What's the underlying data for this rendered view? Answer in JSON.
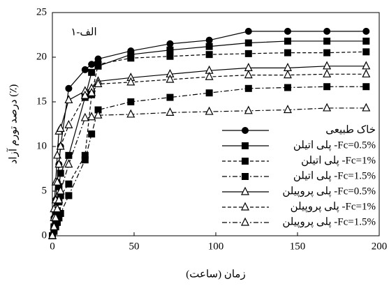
{
  "chart_data": {
    "type": "line",
    "annotation": "۱-الف",
    "x_label": "زمان (ساعت)",
    "y_label": "درصد تورم آزاد (٪)",
    "x": [
      0,
      1,
      2,
      3,
      4,
      5,
      10,
      20,
      24,
      28,
      48,
      72,
      96,
      120,
      144,
      168,
      192
    ],
    "xlim": [
      0,
      200
    ],
    "xticks": [
      0,
      50,
      100,
      150,
      200
    ],
    "ylim": [
      0,
      25
    ],
    "yticks": [
      0,
      5,
      10,
      15,
      20,
      25
    ],
    "grid": false,
    "legend_position": "lower-right",
    "series": [
      {
        "name": "خاک طبیعی",
        "color": "#000000",
        "marker": "circle",
        "dash": "solid",
        "values": [
          0,
          2,
          4,
          6,
          8,
          10,
          16.5,
          18.6,
          19.2,
          19.8,
          20.7,
          21.5,
          21.9,
          22.9,
          22.9,
          22.9,
          22.9
        ]
      },
      {
        "name": "پلی اتیلن -Fc=0.5%",
        "color": "#000000",
        "marker": "square",
        "dash": "solid",
        "values": [
          0,
          1,
          2.5,
          4,
          5.5,
          7,
          9.0,
          15.5,
          18.3,
          19.0,
          20.3,
          20.8,
          21.2,
          21.6,
          21.8,
          21.8,
          21.8
        ]
      },
      {
        "name": "پلی اتیلن -Fc=1%",
        "color": "#000000",
        "marker": "square",
        "dash": "dashed",
        "values": [
          0,
          0.8,
          1.8,
          2.8,
          3.8,
          4.5,
          5.8,
          9.0,
          15.8,
          19.2,
          19.9,
          20.1,
          20.3,
          20.4,
          20.5,
          20.5,
          20.6
        ]
      },
      {
        "name": "پلی اتیلن -Fc=1.5%",
        "color": "#000000",
        "marker": "square",
        "dash": "dashdot",
        "values": [
          0,
          0.5,
          1,
          1.5,
          2,
          2.5,
          4.5,
          8.5,
          11.4,
          14.1,
          15.0,
          15.5,
          16.0,
          16.5,
          16.6,
          16.7,
          16.7
        ]
      },
      {
        "name": "پلی پروپیلن -Fc=0.5%",
        "color": "#000000",
        "marker": "triangle",
        "dash": "solid",
        "values": [
          0,
          3,
          6,
          9,
          11.7,
          12,
          15.2,
          16.2,
          16.5,
          17.3,
          17.7,
          18.1,
          18.5,
          18.8,
          18.8,
          19.0,
          19.0
        ]
      },
      {
        "name": "پلی پروپیلن -Fc=1%",
        "color": "#000000",
        "marker": "triangle",
        "dash": "dashed",
        "values": [
          0,
          2,
          4,
          6,
          8,
          10,
          12.4,
          15.7,
          16.0,
          17.0,
          17.2,
          17.5,
          17.8,
          18.0,
          18.0,
          18.1,
          18.1
        ]
      },
      {
        "name": "پلی پروپیلن -Fc=1.5%",
        "color": "#000000",
        "marker": "triangle",
        "dash": "dashdot",
        "values": [
          0,
          1,
          2,
          3,
          4,
          5,
          8,
          13.2,
          13.3,
          13.5,
          13.6,
          13.8,
          13.9,
          14.0,
          14.1,
          14.3,
          14.3
        ]
      }
    ]
  }
}
